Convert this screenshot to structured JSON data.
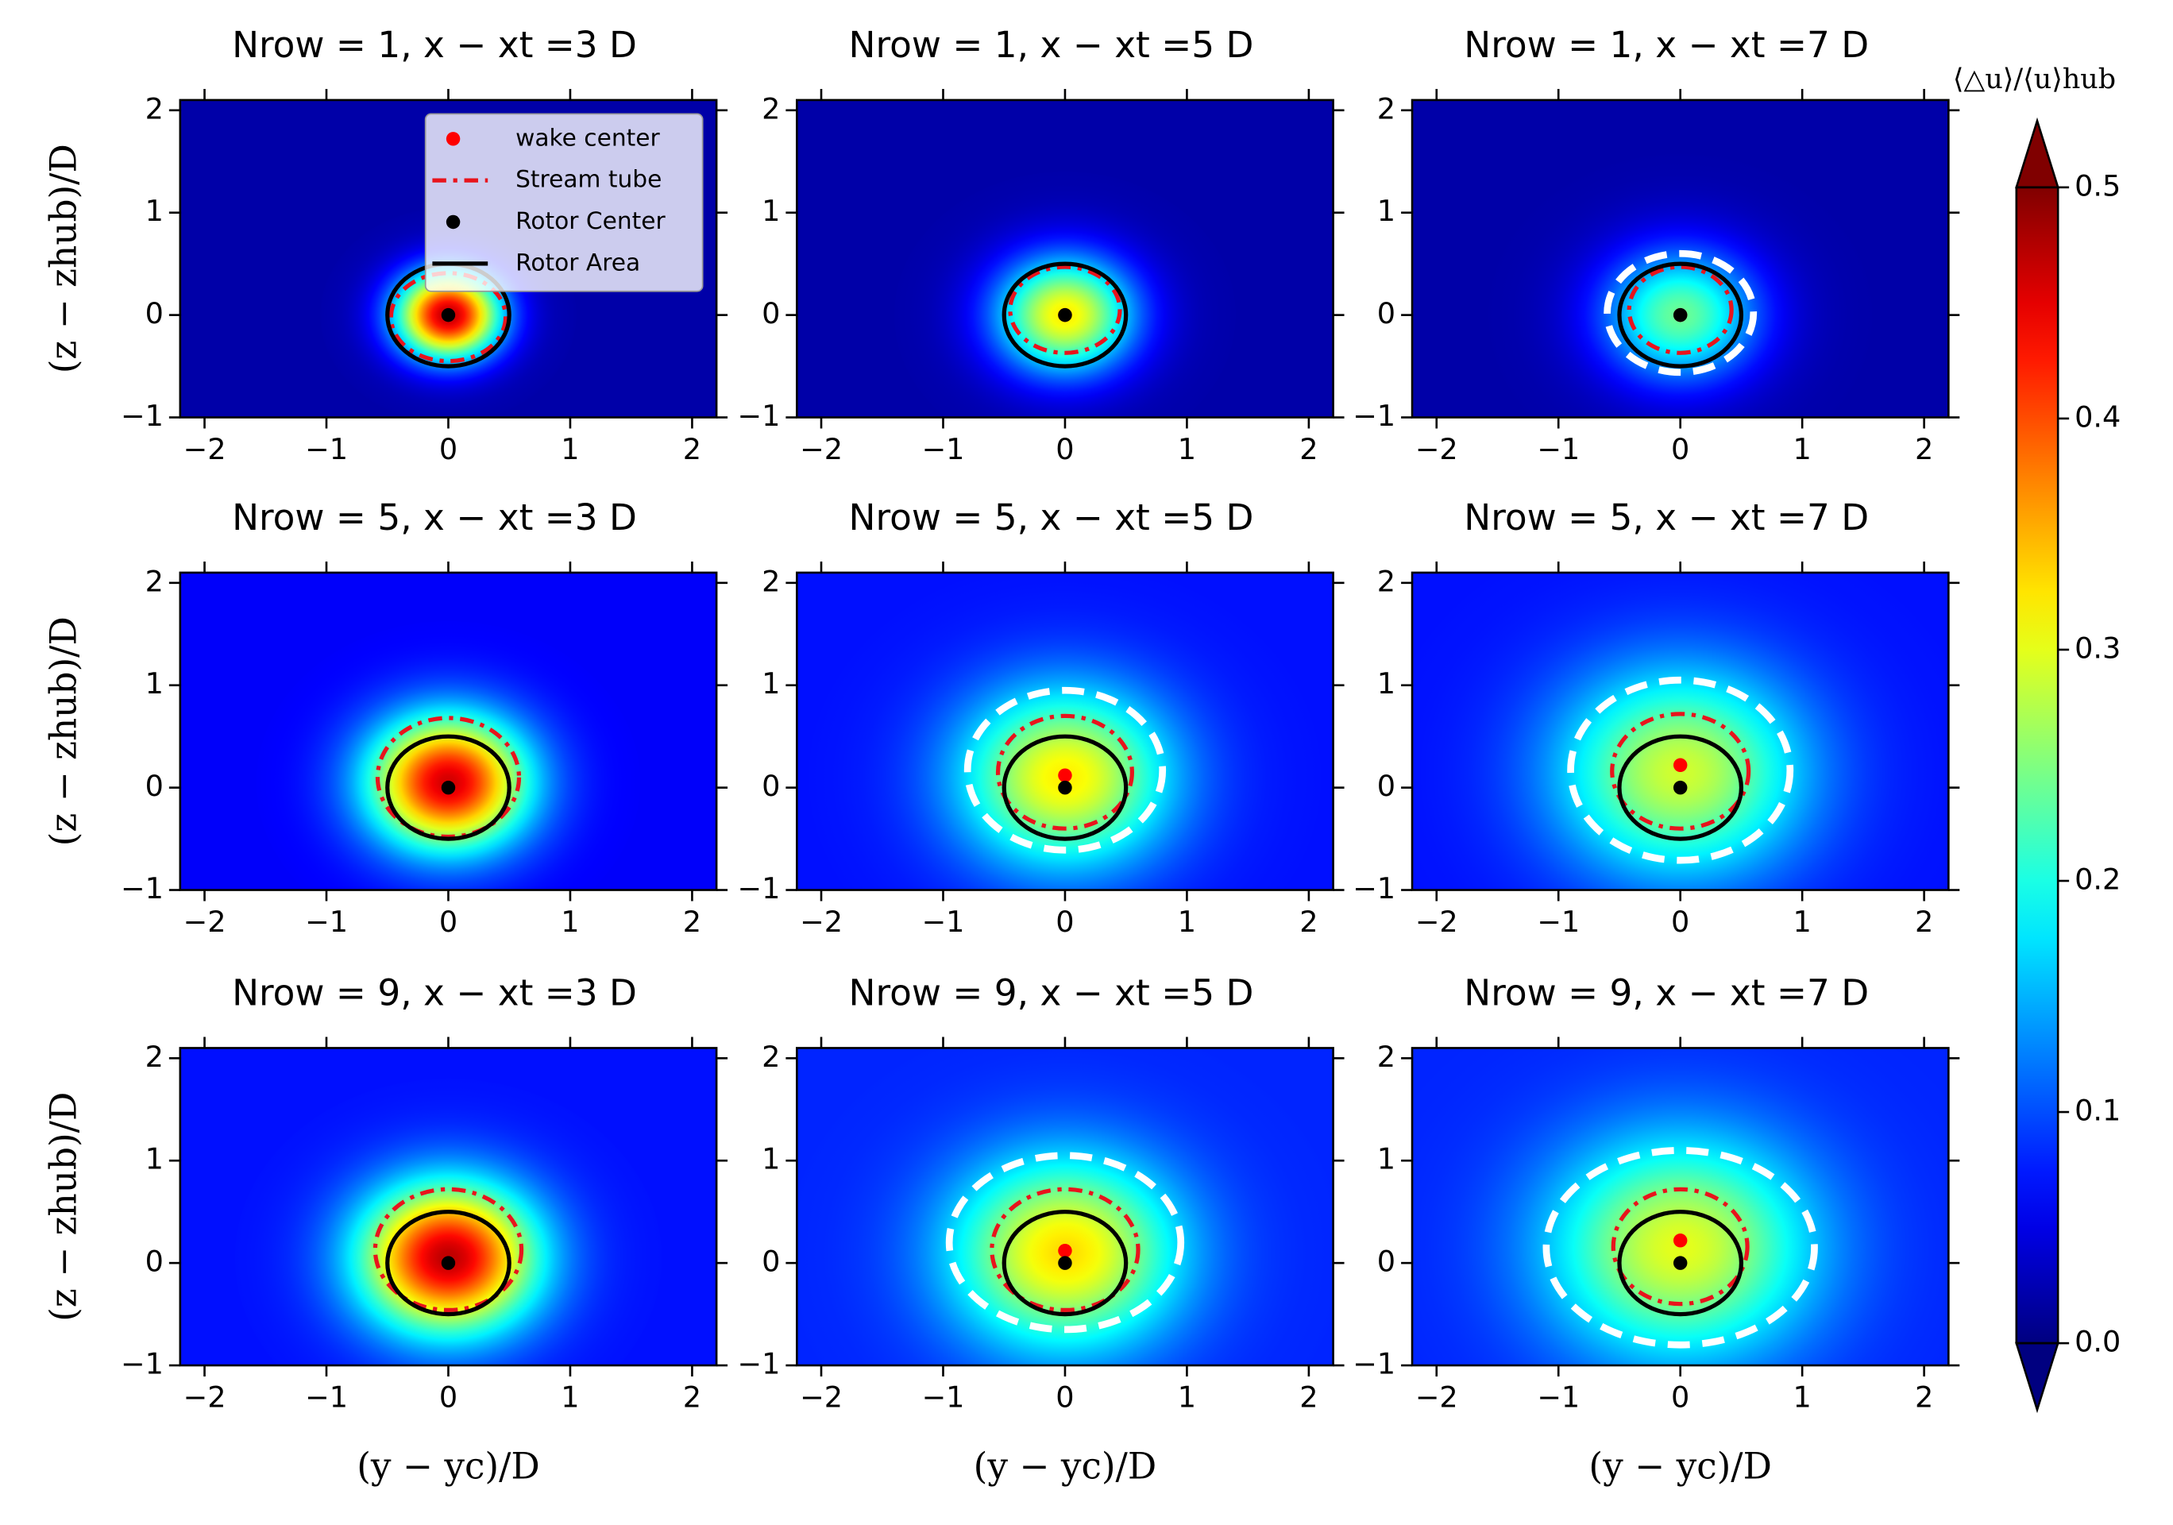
{
  "chart_data": [
    {
      "type": "heatmap",
      "title": "Nrow = 1, x − xt =3 D",
      "ylabel": "(z − zhub)/D",
      "xlim": [
        -2.2,
        2.2
      ],
      "ylim": [
        -1,
        2.1
      ],
      "xticks": [
        {
          "value": -2,
          "label": "−2"
        },
        {
          "value": -1,
          "label": "−1"
        },
        0,
        1,
        2
      ],
      "yticks": [
        {
          "value": -1,
          "label": "−1"
        },
        0,
        1,
        2
      ],
      "field": {
        "peak": 0.45,
        "sigma": 0.3,
        "background": 0.02,
        "center": [
          0,
          0
        ]
      },
      "series": [
        {
          "name": "wake center",
          "type": "scatter",
          "color": "#ff0000",
          "x": [
            0
          ],
          "y": [
            0
          ]
        },
        {
          "name": "Stream tube",
          "type": "ellipse",
          "style": "dashdot",
          "color": "#e8141c",
          "center": [
            0,
            -0.02
          ],
          "radius": [
            0.47,
            0.43
          ]
        },
        {
          "name": "Rotor Center",
          "type": "scatter",
          "color": "#000000",
          "x": [
            0
          ],
          "y": [
            0
          ]
        },
        {
          "name": "Rotor Area",
          "type": "ellipse",
          "style": "solid",
          "color": "#000000",
          "center": [
            0,
            0
          ],
          "radius": [
            0.5,
            0.5
          ]
        }
      ],
      "legend": "upper right"
    },
    {
      "type": "heatmap",
      "title": "Nrow = 1, x − xt =5 D",
      "xlim": [
        -2.2,
        2.2
      ],
      "ylim": [
        -1,
        2.1
      ],
      "xticks": [
        {
          "value": -2,
          "label": "−2"
        },
        {
          "value": -1,
          "label": "−1"
        },
        0,
        1,
        2
      ],
      "yticks": [
        {
          "value": -1,
          "label": "−1"
        },
        0,
        1,
        2
      ],
      "field": {
        "peak": 0.3,
        "sigma": 0.4,
        "background": 0.02,
        "center": [
          0,
          0
        ]
      },
      "series": [
        {
          "type": "scatter",
          "color": "#ff0000",
          "x": [
            0
          ],
          "y": [
            0
          ]
        },
        {
          "type": "ellipse",
          "style": "dashdot",
          "color": "#e8141c",
          "center": [
            0,
            0.05
          ],
          "radius": [
            0.45,
            0.42
          ]
        },
        {
          "type": "scatter",
          "color": "#000000",
          "x": [
            0
          ],
          "y": [
            0
          ]
        },
        {
          "type": "ellipse",
          "style": "solid",
          "color": "#000000",
          "center": [
            0,
            0
          ],
          "radius": [
            0.5,
            0.5
          ]
        }
      ]
    },
    {
      "type": "heatmap",
      "title": "Nrow = 1, x − xt =7 D",
      "xlim": [
        -2.2,
        2.2
      ],
      "ylim": [
        -1,
        2.1
      ],
      "xticks": [
        {
          "value": -2,
          "label": "−2"
        },
        {
          "value": -1,
          "label": "−1"
        },
        0,
        1,
        2
      ],
      "yticks": [
        {
          "value": -1,
          "label": "−1"
        },
        0,
        1,
        2
      ],
      "field": {
        "peak": 0.22,
        "sigma": 0.45,
        "background": 0.02,
        "center": [
          0,
          0
        ]
      },
      "series": [
        {
          "type": "scatter",
          "color": "#ff0000",
          "x": [
            0
          ],
          "y": [
            0
          ]
        },
        {
          "type": "ellipse",
          "style": "dashdot",
          "color": "#e8141c",
          "center": [
            0,
            0.05
          ],
          "radius": [
            0.42,
            0.42
          ]
        },
        {
          "type": "scatter",
          "color": "#000000",
          "x": [
            0
          ],
          "y": [
            0
          ]
        },
        {
          "type": "ellipse",
          "style": "solid",
          "color": "#000000",
          "center": [
            0,
            0
          ],
          "radius": [
            0.5,
            0.5
          ]
        },
        {
          "type": "ellipse",
          "style": "dashed",
          "color": "#ffffff",
          "center": [
            0,
            0.02
          ],
          "radius": [
            0.6,
            0.58
          ]
        }
      ]
    },
    {
      "type": "heatmap",
      "title": "Nrow = 5, x − xt =3 D",
      "ylabel": "(z − zhub)/D",
      "xlim": [
        -2.2,
        2.2
      ],
      "ylim": [
        -1,
        2.1
      ],
      "xticks": [
        {
          "value": -2,
          "label": "−2"
        },
        {
          "value": -1,
          "label": "−1"
        },
        0,
        1,
        2
      ],
      "yticks": [
        {
          "value": -1,
          "label": "−1"
        },
        0,
        1,
        2
      ],
      "field": {
        "peak": 0.4,
        "sigma": 0.45,
        "background": 0.06,
        "center": [
          0,
          0.05
        ]
      },
      "series": [
        {
          "type": "scatter",
          "color": "#ff0000",
          "x": [
            0
          ],
          "y": [
            0
          ]
        },
        {
          "type": "ellipse",
          "style": "dashdot",
          "color": "#e8141c",
          "center": [
            0,
            0.1
          ],
          "radius": [
            0.58,
            0.58
          ]
        },
        {
          "type": "scatter",
          "color": "#000000",
          "x": [
            0
          ],
          "y": [
            0
          ]
        },
        {
          "type": "ellipse",
          "style": "solid",
          "color": "#000000",
          "center": [
            0,
            0
          ],
          "radius": [
            0.5,
            0.5
          ]
        }
      ]
    },
    {
      "type": "heatmap",
      "title": "Nrow = 5, x − xt =5 D",
      "xlim": [
        -2.2,
        2.2
      ],
      "ylim": [
        -1,
        2.1
      ],
      "xticks": [
        {
          "value": -2,
          "label": "−2"
        },
        {
          "value": -1,
          "label": "−1"
        },
        0,
        1,
        2
      ],
      "yticks": [
        {
          "value": -1,
          "label": "−1"
        },
        0,
        1,
        2
      ],
      "field": {
        "peak": 0.25,
        "sigma": 0.6,
        "background": 0.07,
        "center": [
          0,
          0.1
        ]
      },
      "series": [
        {
          "type": "scatter",
          "color": "#ff0000",
          "x": [
            0
          ],
          "y": [
            0.12
          ]
        },
        {
          "type": "ellipse",
          "style": "dashdot",
          "color": "#e8141c",
          "center": [
            0,
            0.15
          ],
          "radius": [
            0.55,
            0.55
          ]
        },
        {
          "type": "scatter",
          "color": "#000000",
          "x": [
            0
          ],
          "y": [
            0
          ]
        },
        {
          "type": "ellipse",
          "style": "solid",
          "color": "#000000",
          "center": [
            0,
            0
          ],
          "radius": [
            0.5,
            0.5
          ]
        },
        {
          "type": "ellipse",
          "style": "dashed",
          "color": "#ffffff",
          "center": [
            0,
            0.17
          ],
          "radius": [
            0.8,
            0.78
          ]
        }
      ]
    },
    {
      "type": "heatmap",
      "title": "Nrow = 5, x − xt =7 D",
      "xlim": [
        -2.2,
        2.2
      ],
      "ylim": [
        -1,
        2.1
      ],
      "xticks": [
        {
          "value": -2,
          "label": "−2"
        },
        {
          "value": -1,
          "label": "−1"
        },
        0,
        1,
        2
      ],
      "yticks": [
        {
          "value": -1,
          "label": "−1"
        },
        0,
        1,
        2
      ],
      "field": {
        "peak": 0.22,
        "sigma": 0.7,
        "background": 0.07,
        "center": [
          0,
          0.15
        ]
      },
      "series": [
        {
          "type": "scatter",
          "color": "#ff0000",
          "x": [
            0
          ],
          "y": [
            0.22
          ]
        },
        {
          "type": "ellipse",
          "style": "dashdot",
          "color": "#e8141c",
          "center": [
            0,
            0.16
          ],
          "radius": [
            0.56,
            0.56
          ]
        },
        {
          "type": "scatter",
          "color": "#000000",
          "x": [
            0
          ],
          "y": [
            0
          ]
        },
        {
          "type": "ellipse",
          "style": "solid",
          "color": "#000000",
          "center": [
            0,
            0
          ],
          "radius": [
            0.5,
            0.5
          ]
        },
        {
          "type": "ellipse",
          "style": "dashed",
          "color": "#ffffff",
          "center": [
            0,
            0.17
          ],
          "radius": [
            0.9,
            0.88
          ]
        }
      ]
    },
    {
      "type": "heatmap",
      "title": "Nrow = 9, x − xt =3 D",
      "ylabel": "(z − zhub)/D",
      "xlabel": "(y − yc)/D",
      "xlim": [
        -2.2,
        2.2
      ],
      "ylim": [
        -1,
        2.1
      ],
      "xticks": [
        {
          "value": -2,
          "label": "−2"
        },
        {
          "value": -1,
          "label": "−1"
        },
        0,
        1,
        2
      ],
      "yticks": [
        {
          "value": -1,
          "label": "−1"
        },
        0,
        1,
        2
      ],
      "field": {
        "peak": 0.4,
        "sigma": 0.5,
        "background": 0.07,
        "center": [
          0,
          0.05
        ]
      },
      "series": [
        {
          "type": "scatter",
          "color": "#ff0000",
          "x": [
            0
          ],
          "y": [
            0
          ]
        },
        {
          "type": "ellipse",
          "style": "dashdot",
          "color": "#e8141c",
          "center": [
            0,
            0.13
          ],
          "radius": [
            0.6,
            0.59
          ]
        },
        {
          "type": "scatter",
          "color": "#000000",
          "x": [
            0
          ],
          "y": [
            0
          ]
        },
        {
          "type": "ellipse",
          "style": "solid",
          "color": "#000000",
          "center": [
            0,
            0
          ],
          "radius": [
            0.5,
            0.5
          ]
        }
      ]
    },
    {
      "type": "heatmap",
      "title": "Nrow = 9, x − xt =5 D",
      "xlabel": "(y − yc)/D",
      "xlim": [
        -2.2,
        2.2
      ],
      "ylim": [
        -1,
        2.1
      ],
      "xticks": [
        {
          "value": -2,
          "label": "−2"
        },
        {
          "value": -1,
          "label": "−1"
        },
        0,
        1,
        2
      ],
      "yticks": [
        {
          "value": -1,
          "label": "−1"
        },
        0,
        1,
        2
      ],
      "field": {
        "peak": 0.25,
        "sigma": 0.65,
        "background": 0.08,
        "center": [
          0,
          0.1
        ]
      },
      "series": [
        {
          "type": "scatter",
          "color": "#ff0000",
          "x": [
            0
          ],
          "y": [
            0.12
          ]
        },
        {
          "type": "ellipse",
          "style": "dashdot",
          "color": "#e8141c",
          "center": [
            0,
            0.13
          ],
          "radius": [
            0.6,
            0.59
          ]
        },
        {
          "type": "scatter",
          "color": "#000000",
          "x": [
            0
          ],
          "y": [
            0
          ]
        },
        {
          "type": "ellipse",
          "style": "solid",
          "color": "#000000",
          "center": [
            0,
            0
          ],
          "radius": [
            0.5,
            0.5
          ]
        },
        {
          "type": "ellipse",
          "style": "dashed",
          "color": "#ffffff",
          "center": [
            0,
            0.2
          ],
          "radius": [
            0.95,
            0.85
          ]
        }
      ]
    },
    {
      "type": "heatmap",
      "title": "Nrow = 9, x − xt =7 D",
      "xlabel": "(y − yc)/D",
      "xlim": [
        -2.2,
        2.2
      ],
      "ylim": [
        -1,
        2.1
      ],
      "xticks": [
        {
          "value": -2,
          "label": "−2"
        },
        {
          "value": -1,
          "label": "−1"
        },
        0,
        1,
        2
      ],
      "yticks": [
        {
          "value": -1,
          "label": "−1"
        },
        0,
        1,
        2
      ],
      "field": {
        "peak": 0.22,
        "sigma": 0.75,
        "background": 0.08,
        "center": [
          0,
          0.15
        ]
      },
      "series": [
        {
          "type": "scatter",
          "color": "#ff0000",
          "x": [
            0
          ],
          "y": [
            0.22
          ]
        },
        {
          "type": "ellipse",
          "style": "dashdot",
          "color": "#e8141c",
          "center": [
            0,
            0.16
          ],
          "radius": [
            0.55,
            0.56
          ]
        },
        {
          "type": "scatter",
          "color": "#000000",
          "x": [
            0
          ],
          "y": [
            0
          ]
        },
        {
          "type": "ellipse",
          "style": "solid",
          "color": "#000000",
          "center": [
            0,
            0
          ],
          "radius": [
            0.5,
            0.5
          ]
        },
        {
          "type": "ellipse",
          "style": "dashed",
          "color": "#ffffff",
          "center": [
            0,
            0.15
          ],
          "radius": [
            1.1,
            0.95
          ]
        }
      ]
    },
    {
      "type": "colorbar",
      "label": "⟨△u⟩/⟨u⟩hub",
      "colormap": "jet",
      "extend": "both",
      "ylim": [
        0,
        0.5
      ],
      "yticks": [
        {
          "value": 0,
          "label": "0.0"
        },
        0.1,
        0.2,
        0.3,
        0.4,
        0.5
      ]
    }
  ]
}
